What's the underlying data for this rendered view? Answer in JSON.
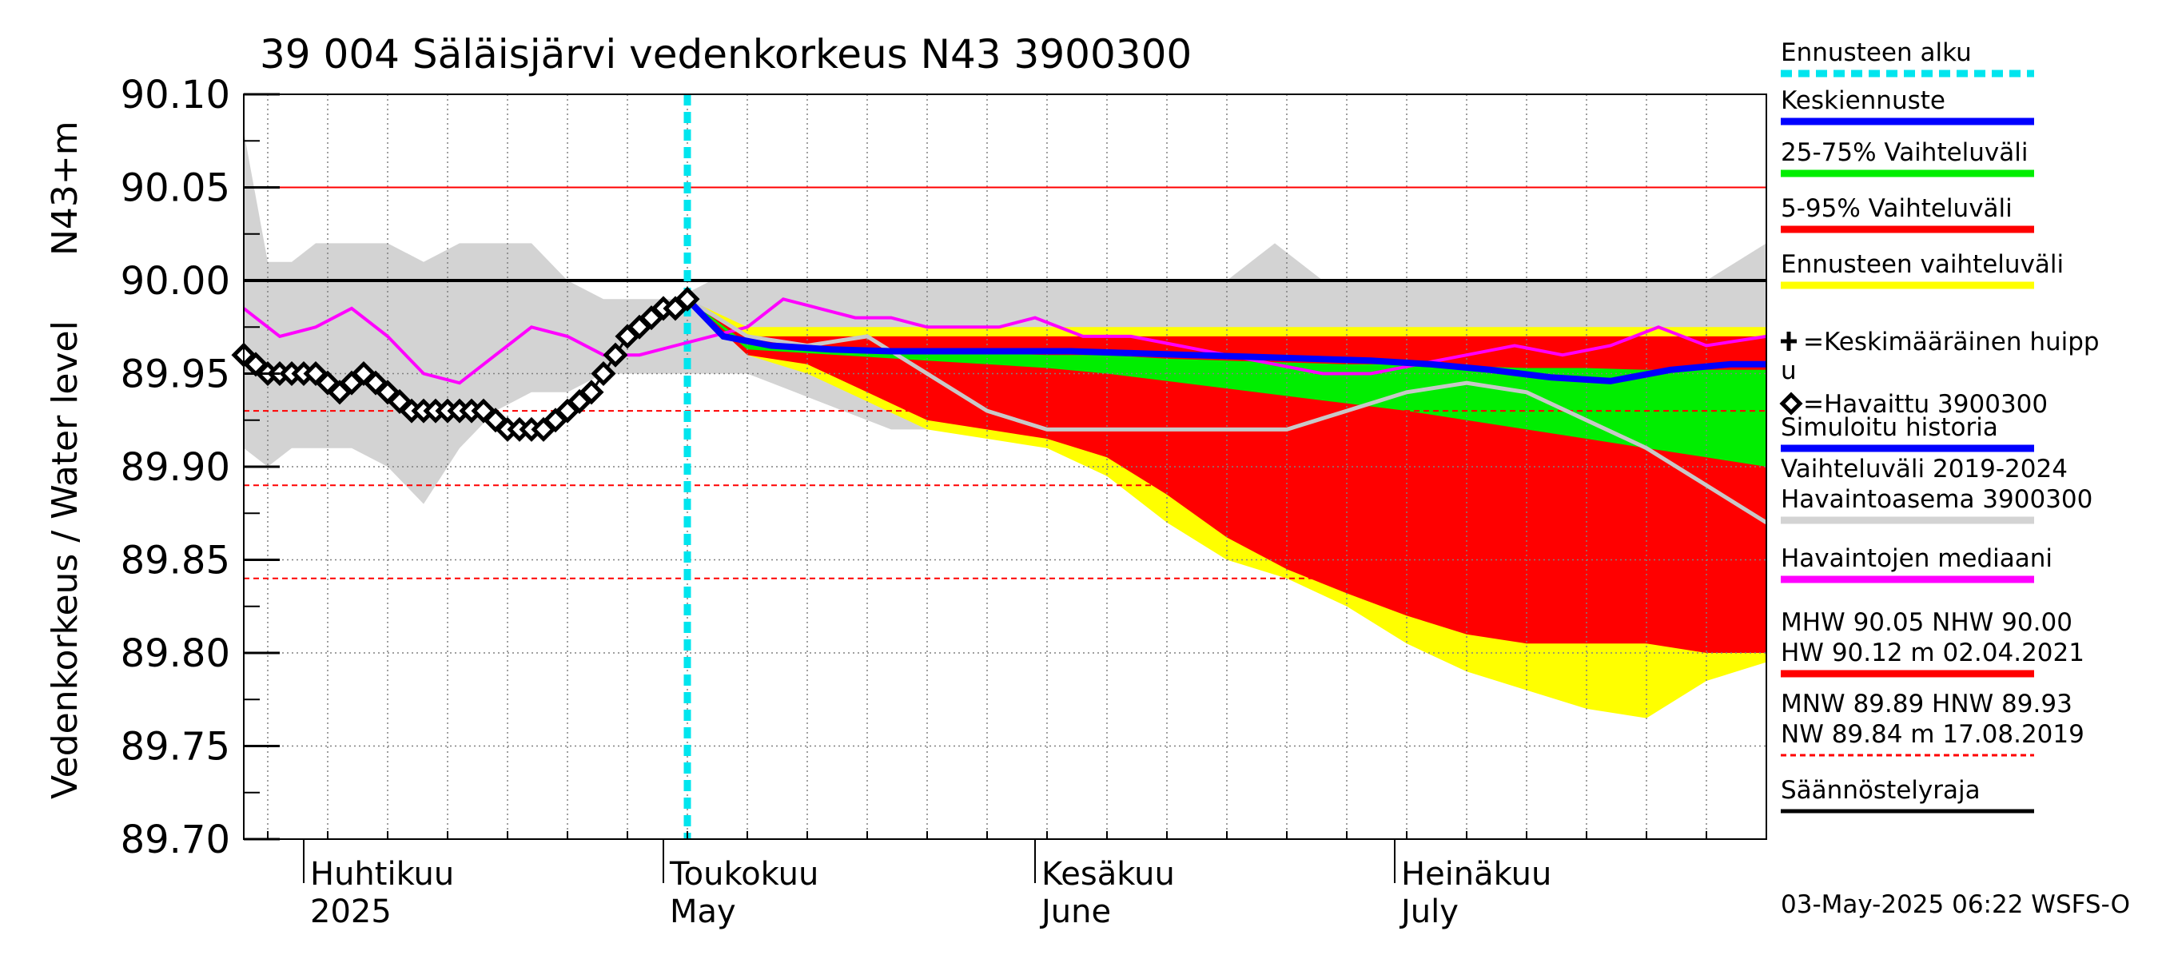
{
  "chart_data": {
    "type": "area",
    "title": "39 004 Säläisjärvi vedenkorkeus N43 3900300",
    "ylabel_left": "Vedenkorkeus / Water level",
    "ylabel_unit": "N43+m",
    "ylim": [
      89.7,
      90.1
    ],
    "yticks": [
      "90.10",
      "90.05",
      "90.00",
      "89.95",
      "89.90",
      "89.85",
      "89.80",
      "89.75",
      "89.70"
    ],
    "x_start": "2025-03-27",
    "x_end": "2025-08-01",
    "month_labels": [
      {
        "date": "2025-04-01",
        "fi": "Huhtikuu",
        "en": "2025"
      },
      {
        "date": "2025-05-01",
        "fi": "Toukokuu",
        "en": "May"
      },
      {
        "date": "2025-06-01",
        "fi": "Kesäkuu",
        "en": "June"
      },
      {
        "date": "2025-07-01",
        "fi": "Heinäkuu",
        "en": "July"
      }
    ],
    "forecast_start": "2025-05-03",
    "reference_lines": [
      {
        "value": 90.05,
        "label": "MHW",
        "color": "#ff0000",
        "style": "solid"
      },
      {
        "value": 90.0,
        "label": "NHW",
        "color": "#000000",
        "style": "solid"
      },
      {
        "value": 89.93,
        "label": "HNW",
        "color": "#ff0000",
        "style": "dashed"
      },
      {
        "value": 89.89,
        "label": "MNW",
        "color": "#ff0000",
        "style": "dashed"
      },
      {
        "value": 89.84,
        "label": "NW",
        "color": "#ff0000",
        "style": "dashed"
      }
    ],
    "history_band_2019_2024": {
      "x": [
        "2025-03-27",
        "2025-03-29",
        "2025-03-31",
        "2025-04-02",
        "2025-04-05",
        "2025-04-08",
        "2025-04-11",
        "2025-04-14",
        "2025-04-17",
        "2025-04-20",
        "2025-04-23",
        "2025-04-26",
        "2025-04-29",
        "2025-05-02",
        "2025-05-05",
        "2025-05-08",
        "2025-05-12",
        "2025-05-16",
        "2025-05-20",
        "2025-05-24",
        "2025-05-28",
        "2025-06-01",
        "2025-06-05",
        "2025-06-09",
        "2025-06-13",
        "2025-06-17",
        "2025-06-21",
        "2025-06-25",
        "2025-06-29",
        "2025-07-03",
        "2025-07-07",
        "2025-07-11",
        "2025-07-15",
        "2025-07-19",
        "2025-07-23",
        "2025-07-27",
        "2025-08-01"
      ],
      "high": [
        90.08,
        90.01,
        90.01,
        90.02,
        90.02,
        90.02,
        90.01,
        90.02,
        90.02,
        90.02,
        90.0,
        89.99,
        89.99,
        89.99,
        90.0,
        90.0,
        90.0,
        90.0,
        90.0,
        90.0,
        90.0,
        90.0,
        90.0,
        90.0,
        90.0,
        90.0,
        90.02,
        90.0,
        90.0,
        90.0,
        90.0,
        90.0,
        90.0,
        90.0,
        90.0,
        90.0,
        90.02
      ],
      "low": [
        89.91,
        89.9,
        89.91,
        89.91,
        89.91,
        89.9,
        89.88,
        89.91,
        89.93,
        89.94,
        89.94,
        89.95,
        89.95,
        89.95,
        89.95,
        89.95,
        89.94,
        89.93,
        89.92,
        89.92,
        89.92,
        89.93,
        89.94,
        89.95,
        89.94,
        89.94,
        89.93,
        89.92,
        89.91,
        89.91,
        89.9,
        89.9,
        89.9,
        89.89,
        89.89,
        89.88,
        89.87
      ]
    },
    "forecast_bands": {
      "x": [
        "2025-05-03",
        "2025-05-08",
        "2025-05-13",
        "2025-05-18",
        "2025-05-23",
        "2025-05-28",
        "2025-06-02",
        "2025-06-07",
        "2025-06-12",
        "2025-06-17",
        "2025-06-22",
        "2025-06-27",
        "2025-07-02",
        "2025-07-07",
        "2025-07-12",
        "2025-07-17",
        "2025-07-22",
        "2025-07-27",
        "2025-08-01"
      ],
      "p95_upper": [
        89.99,
        89.97,
        89.97,
        89.97,
        89.97,
        89.97,
        89.97,
        89.97,
        89.97,
        89.97,
        89.97,
        89.97,
        89.97,
        89.97,
        89.97,
        89.97,
        89.97,
        89.97,
        89.97
      ],
      "p75": [
        89.99,
        89.966,
        89.964,
        89.963,
        89.962,
        89.961,
        89.96,
        89.96,
        89.958,
        89.957,
        89.956,
        89.955,
        89.955,
        89.954,
        89.953,
        89.953,
        89.952,
        89.952,
        89.952
      ],
      "p25": [
        89.99,
        89.963,
        89.961,
        89.959,
        89.957,
        89.955,
        89.953,
        89.95,
        89.946,
        89.942,
        89.938,
        89.934,
        89.93,
        89.925,
        89.92,
        89.915,
        89.91,
        89.905,
        89.9
      ],
      "p05_lower": [
        89.99,
        89.96,
        89.955,
        89.94,
        89.925,
        89.92,
        89.915,
        89.905,
        89.885,
        89.862,
        89.845,
        89.832,
        89.82,
        89.81,
        89.805,
        89.805,
        89.805,
        89.8,
        89.8
      ],
      "ens_upper": [
        89.99,
        89.975,
        89.975,
        89.975,
        89.975,
        89.975,
        89.975,
        89.975,
        89.975,
        89.975,
        89.975,
        89.975,
        89.975,
        89.975,
        89.975,
        89.975,
        89.975,
        89.975,
        89.975
      ],
      "ens_lower": [
        89.99,
        89.96,
        89.95,
        89.935,
        89.92,
        89.915,
        89.91,
        89.895,
        89.87,
        89.85,
        89.84,
        89.825,
        89.805,
        89.79,
        89.78,
        89.77,
        89.765,
        89.785,
        89.795
      ]
    },
    "median_line": {
      "x": [
        "2025-03-27",
        "2025-03-30",
        "2025-04-02",
        "2025-04-05",
        "2025-04-08",
        "2025-04-11",
        "2025-04-14",
        "2025-04-17",
        "2025-04-20",
        "2025-04-23",
        "2025-04-26",
        "2025-04-29",
        "2025-05-02",
        "2025-05-05",
        "2025-05-08",
        "2025-05-11",
        "2025-05-14",
        "2025-05-17",
        "2025-05-20",
        "2025-05-23",
        "2025-05-26",
        "2025-05-29",
        "2025-06-01",
        "2025-06-05",
        "2025-06-09",
        "2025-06-13",
        "2025-06-17",
        "2025-06-21",
        "2025-06-25",
        "2025-06-29",
        "2025-07-03",
        "2025-07-07",
        "2025-07-11",
        "2025-07-15",
        "2025-07-19",
        "2025-07-23",
        "2025-07-27",
        "2025-08-01"
      ],
      "y": [
        89.985,
        89.97,
        89.975,
        89.985,
        89.97,
        89.95,
        89.945,
        89.96,
        89.975,
        89.97,
        89.96,
        89.96,
        89.965,
        89.97,
        89.975,
        89.99,
        89.985,
        89.98,
        89.98,
        89.975,
        89.975,
        89.975,
        89.98,
        89.97,
        89.97,
        89.965,
        89.96,
        89.955,
        89.95,
        89.95,
        89.955,
        89.96,
        89.965,
        89.96,
        89.965,
        89.975,
        89.965,
        89.97
      ]
    },
    "simulated_history": {
      "x": [
        "2025-05-03",
        "2025-05-08",
        "2025-05-13",
        "2025-05-18",
        "2025-05-23",
        "2025-05-28",
        "2025-06-02",
        "2025-06-07",
        "2025-06-12",
        "2025-06-17",
        "2025-06-22",
        "2025-06-27",
        "2025-07-02",
        "2025-07-07",
        "2025-07-12",
        "2025-07-17",
        "2025-07-22",
        "2025-07-27",
        "2025-08-01"
      ],
      "y": [
        89.99,
        89.97,
        89.965,
        89.97,
        89.95,
        89.93,
        89.92,
        89.92,
        89.92,
        89.92,
        89.92,
        89.93,
        89.94,
        89.945,
        89.94,
        89.925,
        89.91,
        89.89,
        89.87
      ]
    },
    "forecast_mean": {
      "x": [
        "2025-05-03",
        "2025-05-06",
        "2025-05-10",
        "2025-05-15",
        "2025-05-20",
        "2025-05-25",
        "2025-05-30",
        "2025-06-04",
        "2025-06-09",
        "2025-06-14",
        "2025-06-19",
        "2025-06-24",
        "2025-06-29",
        "2025-07-04",
        "2025-07-09",
        "2025-07-14",
        "2025-07-19",
        "2025-07-24",
        "2025-07-29",
        "2025-08-01"
      ],
      "y": [
        89.99,
        89.97,
        89.965,
        89.963,
        89.962,
        89.962,
        89.962,
        89.962,
        89.961,
        89.96,
        89.959,
        89.958,
        89.957,
        89.955,
        89.952,
        89.948,
        89.946,
        89.952,
        89.955,
        89.955
      ]
    },
    "observed": {
      "x": [
        "2025-03-27",
        "2025-03-28",
        "2025-03-29",
        "2025-03-30",
        "2025-03-31",
        "2025-04-01",
        "2025-04-02",
        "2025-04-03",
        "2025-04-04",
        "2025-04-05",
        "2025-04-06",
        "2025-04-07",
        "2025-04-08",
        "2025-04-09",
        "2025-04-10",
        "2025-04-11",
        "2025-04-12",
        "2025-04-13",
        "2025-04-14",
        "2025-04-15",
        "2025-04-16",
        "2025-04-17",
        "2025-04-18",
        "2025-04-19",
        "2025-04-20",
        "2025-04-21",
        "2025-04-22",
        "2025-04-23",
        "2025-04-24",
        "2025-04-25",
        "2025-04-26",
        "2025-04-27",
        "2025-04-28",
        "2025-04-29",
        "2025-04-30",
        "2025-05-01",
        "2025-05-02",
        "2025-05-03"
      ],
      "y": [
        89.96,
        89.955,
        89.95,
        89.95,
        89.95,
        89.95,
        89.95,
        89.945,
        89.94,
        89.945,
        89.95,
        89.945,
        89.94,
        89.935,
        89.93,
        89.93,
        89.93,
        89.93,
        89.93,
        89.93,
        89.93,
        89.925,
        89.92,
        89.92,
        89.92,
        89.92,
        89.925,
        89.93,
        89.935,
        89.94,
        89.95,
        89.96,
        89.97,
        89.975,
        89.98,
        89.985,
        89.985,
        89.99
      ]
    },
    "colors": {
      "forecast_start": "#00e5ee",
      "mean": "#0000ff",
      "p25_75": "#00ee00",
      "p05_95": "#ff0000",
      "ensemble": "#ffff00",
      "history_band": "#d3d3d3",
      "median": "#ff00ff",
      "simulated": "#c8c8c8"
    },
    "legend": [
      {
        "label": "Ennusteen alku",
        "color": "#00e5ee",
        "style": "dotted"
      },
      {
        "label": "Keskiennuste",
        "color": "#0000ff",
        "style": "solid"
      },
      {
        "label": "25-75% Vaihteluväli",
        "color": "#00ee00",
        "style": "solid"
      },
      {
        "label": "5-95% Vaihteluväli",
        "color": "#ff0000",
        "style": "solid"
      },
      {
        "label": "Ennusteen vaihteluväli",
        "color": "#ffff00",
        "style": "solid"
      },
      {
        "label": "=Keskimääräinen huipp",
        "label2": "u",
        "color": "#000000",
        "style": "plus"
      },
      {
        "label": "=Havaittu 3900300",
        "color": "#000000",
        "style": "diamond"
      },
      {
        "label": "Simuloitu historia",
        "color": "#0000ff",
        "style": "solid"
      },
      {
        "label": "Vaihteluväli 2019-2024",
        "label2": " Havaintoasema 3900300",
        "color": "#d3d3d3",
        "style": "solid"
      },
      {
        "label": "Havaintojen mediaani",
        "color": "#ff00ff",
        "style": "solid"
      },
      {
        "label": "MHW  90.05 NHW  90.00",
        "label2": "HW  90.12 m 02.04.2021",
        "color": "#ff0000",
        "style": "solid"
      },
      {
        "label": "MNW  89.89 HNW  89.93",
        "label2": "NW  89.84 m 17.08.2019",
        "color": "#ff0000",
        "style": "dashed"
      },
      {
        "label": "Säännöstelyraja",
        "color": "#000000",
        "style": "solid"
      }
    ],
    "footer": "03-May-2025 06:22 WSFS-O"
  }
}
